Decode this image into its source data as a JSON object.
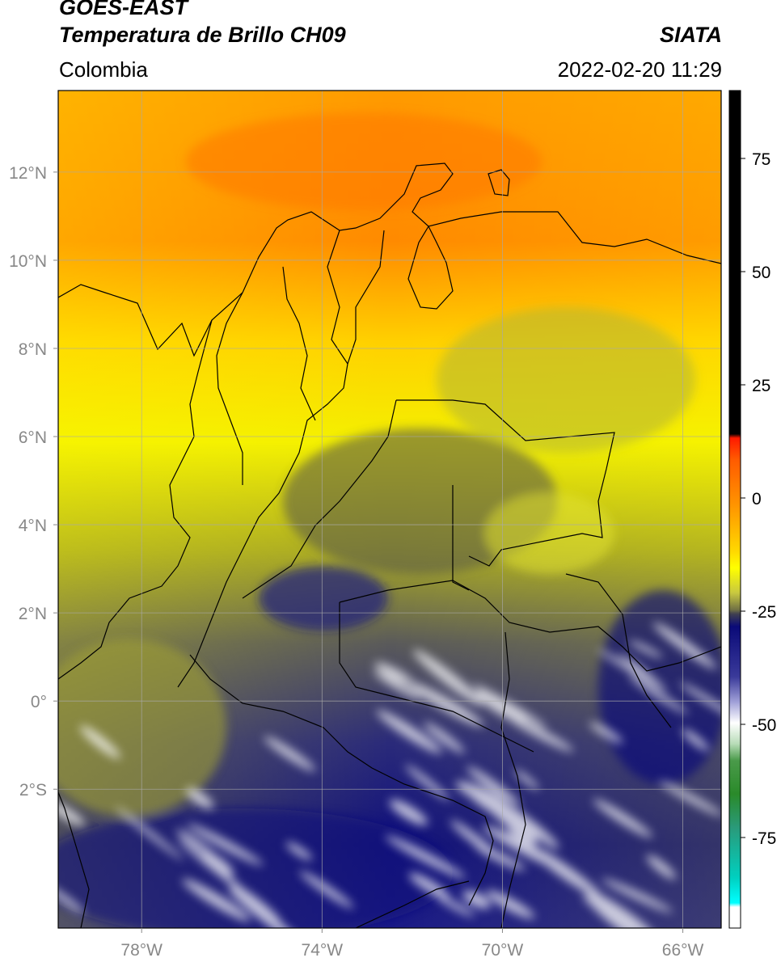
{
  "header": {
    "satellite": "GOES-EAST",
    "product": "Temperatura de Brillo CH09",
    "region": "Colombia",
    "agency": "SIATA",
    "datetime": "2022-02-20 11:29"
  },
  "map": {
    "lon_range": [
      -79.85,
      -65.15
    ],
    "lat_range": [
      -5.15,
      13.85
    ],
    "lon_ticks": [
      "78°W",
      "74°W",
      "70°W",
      "66°W"
    ],
    "lat_ticks": [
      "12°N",
      "10°N",
      "8°N",
      "6°N",
      "4°N",
      "2°N",
      "0°",
      "2°S"
    ],
    "gridlines": true,
    "grid_color": "#a9a9a9",
    "coastline_color": "#000000"
  },
  "colorbar": {
    "unit_range": [
      -95,
      90
    ],
    "ticks": [
      "75",
      "50",
      "25",
      "0",
      "-25",
      "-50",
      "-75"
    ],
    "colors": {
      "black": "#000000",
      "red": "#ff1a00",
      "orange": "#ff8c00",
      "yellow": "#ffff00",
      "olive": "#707045",
      "navy": "#0a0a78",
      "white": "#ffffff",
      "green": "#2a8a2a",
      "cyan": "#00ffff"
    }
  }
}
